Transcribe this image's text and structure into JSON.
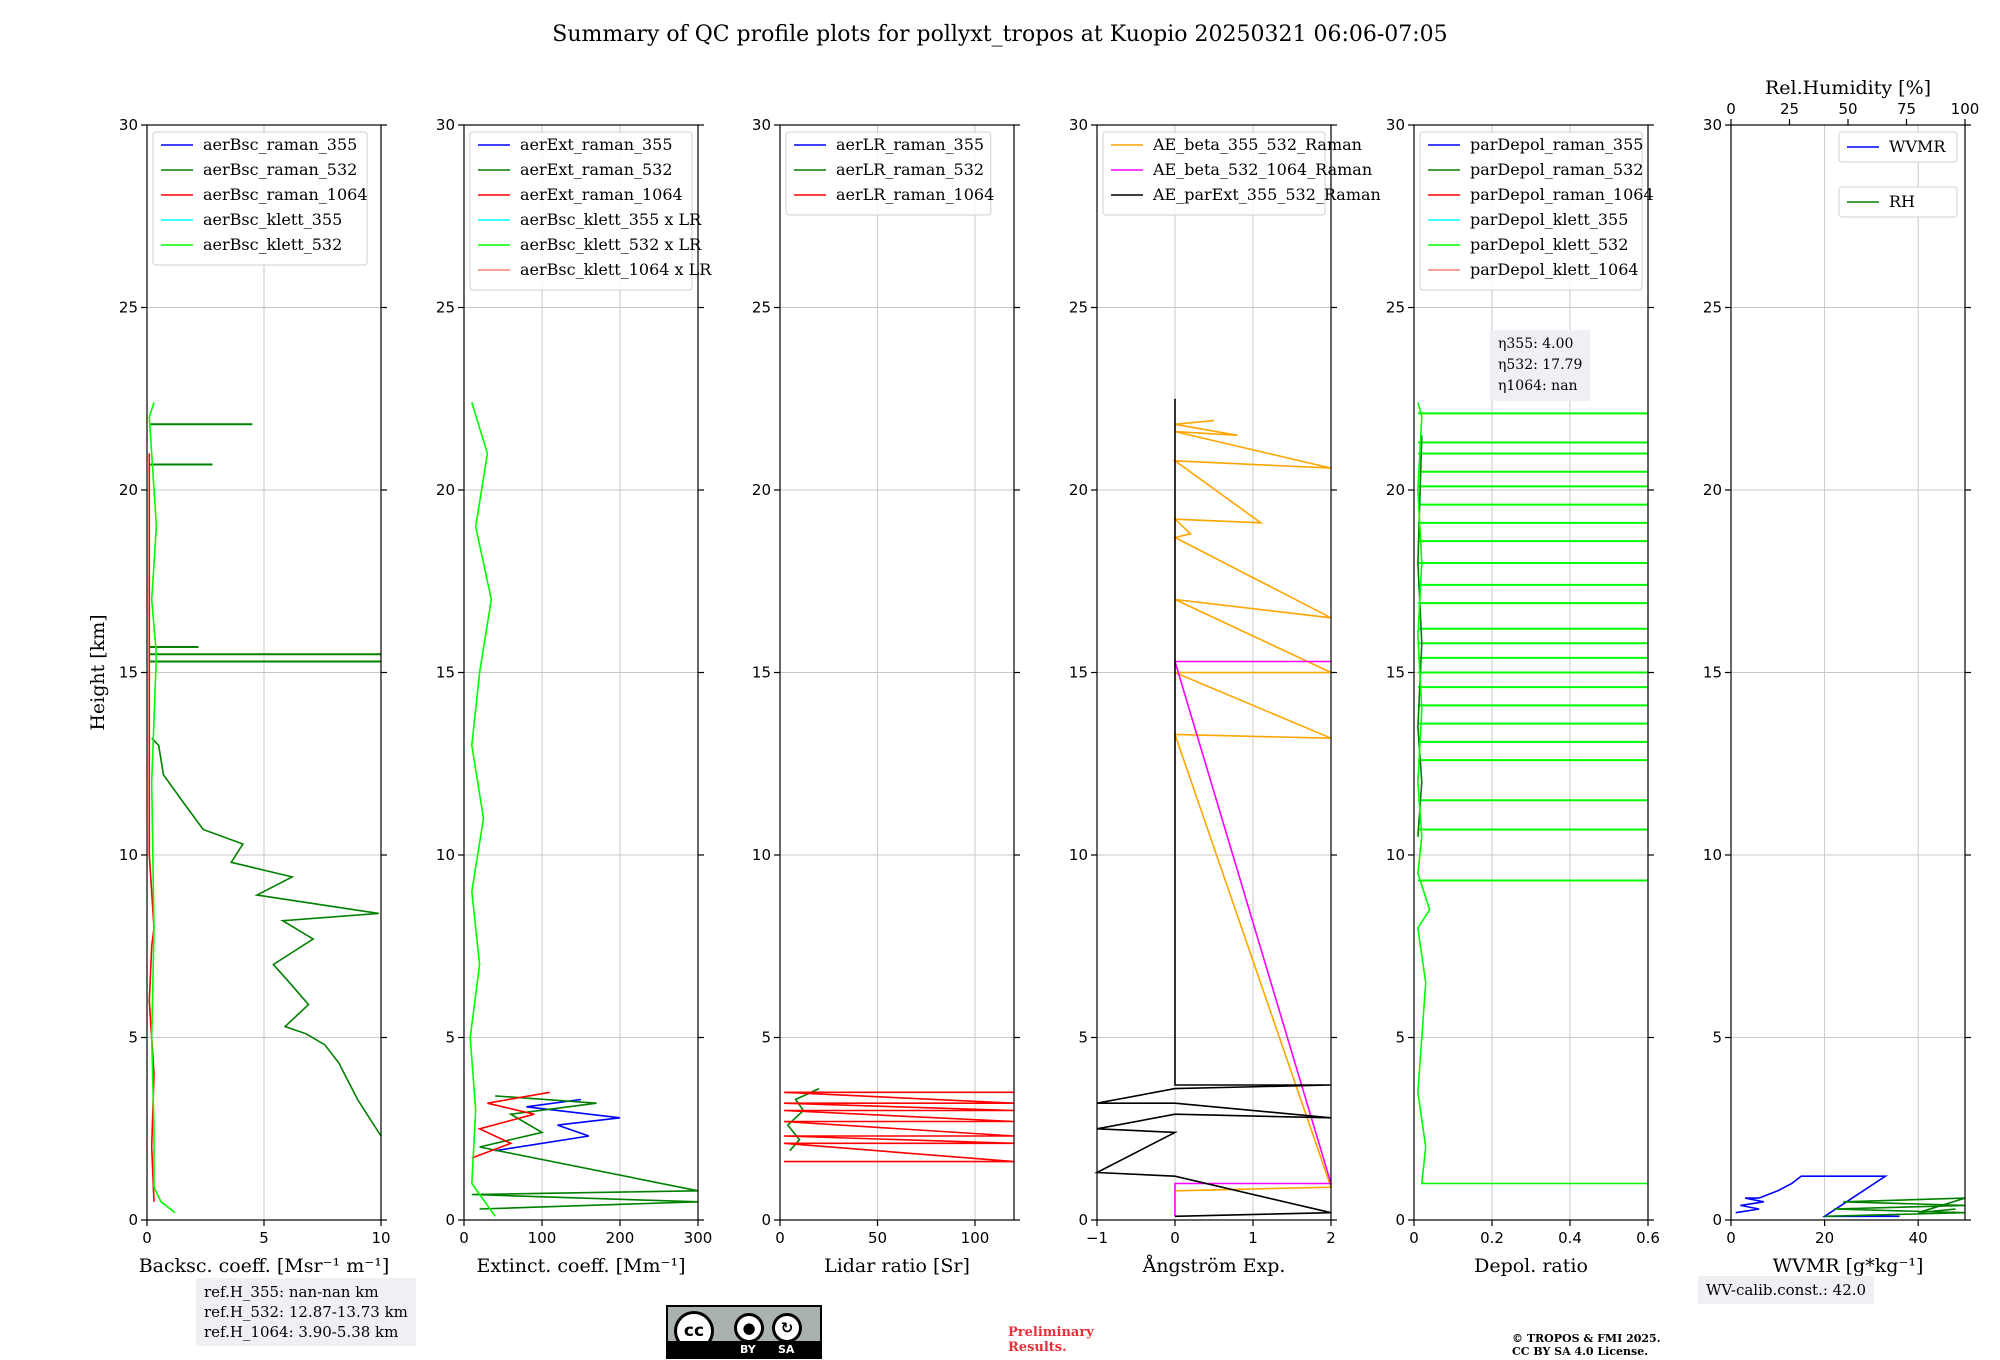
{
  "title": "Summary of QC profile plots for pollyxt_tropos at Kuopio 20250321 06:06-07:05",
  "ref_info": [
    "ref.H_355: nan-nan km",
    "ref.H_532: 12.87-13.73 km",
    "ref.H_1064: 3.90-5.38 km"
  ],
  "eta_info": [
    "η355: 4.00",
    "η532: 17.79",
    "η1064: nan"
  ],
  "wv_calib": "WV-calib.const.: 42.0",
  "preliminary": [
    "Preliminary",
    "Results."
  ],
  "copyright": [
    "© TROPOS & FMI 2025.",
    "CC BY SA 4.0 License."
  ],
  "cc_badge": {
    "main": "cc",
    "by": "BY",
    "sa": "SA"
  },
  "colors": {
    "blue": "#0000ff",
    "green": "#008000",
    "red": "#ff0000",
    "cyan": "#00ffff",
    "lime": "#00ff00",
    "salmon": "#fa8072",
    "orange": "#ffa500",
    "magenta": "#ff00ff",
    "black": "#000000"
  },
  "chart_data": [
    {
      "type": "line",
      "ylabel": "Height [km]",
      "xlabel": "Backsc. coeff. [Msr⁻¹ m⁻¹]",
      "xlim": [
        0,
        10
      ],
      "ylim": [
        0,
        30
      ],
      "xticks": [
        0,
        5,
        10
      ],
      "yticks": [
        0,
        5,
        10,
        15,
        20,
        25,
        30
      ],
      "grid": true,
      "legend": "top-left",
      "series": [
        {
          "name": "aerBsc_raman_355",
          "color": "#0000ff",
          "points": []
        },
        {
          "name": "aerBsc_raman_532",
          "color": "#008000",
          "points": [
            [
              10,
              2.3
            ],
            [
              9.5,
              2.8
            ],
            [
              9,
              3.3
            ],
            [
              8.6,
              3.8
            ],
            [
              8.2,
              4.3
            ],
            [
              7.6,
              4.8
            ],
            [
              6.8,
              5.1
            ],
            [
              5.9,
              5.3
            ],
            [
              6.9,
              5.9
            ],
            [
              6.1,
              6.5
            ],
            [
              5.4,
              7.0
            ],
            [
              7.1,
              7.7
            ],
            [
              5.8,
              8.2
            ],
            [
              9.9,
              8.4
            ],
            [
              4.7,
              8.9
            ],
            [
              6.2,
              9.4
            ],
            [
              3.6,
              9.8
            ],
            [
              4.1,
              10.3
            ],
            [
              2.4,
              10.7
            ],
            [
              1.6,
              11.4
            ],
            [
              0.7,
              12.2
            ],
            [
              0.5,
              13.0
            ],
            [
              0.2,
              13.2
            ]
          ]
        },
        {
          "name": "aerBsc_raman_1064",
          "color": "#ff0000",
          "points": [
            [
              0.3,
              0.5
            ],
            [
              0.2,
              2.0
            ],
            [
              0.3,
              4.0
            ],
            [
              0.1,
              6.0
            ],
            [
              0.2,
              7.5
            ],
            [
              0.3,
              8.0
            ],
            [
              0.1,
              10.0
            ],
            [
              0.1,
              15.5
            ],
            [
              0.1,
              21.0
            ]
          ]
        },
        {
          "name": "aerBsc_klett_355",
          "color": "#00ffff",
          "points": []
        },
        {
          "name": "aerBsc_klett_532",
          "color": "#00ff00",
          "points": [
            [
              1.2,
              0.2
            ],
            [
              0.6,
              0.5
            ],
            [
              0.3,
              0.9
            ],
            [
              0.3,
              2.5
            ],
            [
              0.2,
              5.0
            ],
            [
              0.3,
              8.0
            ],
            [
              0.2,
              12.0
            ],
            [
              0.4,
              15.5
            ],
            [
              0.2,
              17.0
            ],
            [
              0.4,
              19.0
            ],
            [
              0.1,
              22.0
            ],
            [
              0.3,
              22.4
            ]
          ]
        }
      ],
      "extras": [
        {
          "color": "#008000",
          "points": [
            [
              0.1,
              15.3
            ],
            [
              10,
              15.3
            ],
            [
              0.1,
              15.5
            ],
            [
              10,
              15.5
            ],
            [
              0.1,
              21.8
            ],
            [
              4.5,
              21.8
            ],
            [
              0.1,
              20.7
            ],
            [
              2.8,
              20.7
            ],
            [
              0.1,
              15.7
            ],
            [
              2.2,
              15.7
            ]
          ]
        }
      ]
    },
    {
      "type": "line",
      "xlabel": "Extinct. coeff. [Mm⁻¹]",
      "xlim": [
        0,
        300
      ],
      "ylim": [
        0,
        30
      ],
      "xticks": [
        0,
        100,
        200,
        300
      ],
      "yticks": [
        0,
        5,
        10,
        15,
        20,
        25,
        30
      ],
      "grid": true,
      "legend": "top-left",
      "series": [
        {
          "name": "aerExt_raman_355",
          "color": "#0000ff",
          "points": [
            [
              40,
              1.9
            ],
            [
              160,
              2.3
            ],
            [
              120,
              2.6
            ],
            [
              200,
              2.8
            ],
            [
              80,
              3.1
            ],
            [
              150,
              3.3
            ]
          ]
        },
        {
          "name": "aerExt_raman_532",
          "color": "#008000",
          "points": [
            [
              20,
              0.3
            ],
            [
              300,
              0.5
            ],
            [
              10,
              0.7
            ],
            [
              300,
              0.8
            ],
            [
              20,
              2.0
            ],
            [
              100,
              2.4
            ],
            [
              60,
              2.9
            ],
            [
              170,
              3.2
            ],
            [
              40,
              3.4
            ]
          ]
        },
        {
          "name": "aerExt_raman_1064",
          "color": "#ff0000",
          "points": [
            [
              10,
              1.7
            ],
            [
              60,
              2.1
            ],
            [
              20,
              2.5
            ],
            [
              90,
              2.9
            ],
            [
              30,
              3.2
            ],
            [
              110,
              3.5
            ]
          ]
        },
        {
          "name": "aerBsc_klett_355 x LR",
          "color": "#00ffff",
          "points": []
        },
        {
          "name": "aerBsc_klett_532 x LR",
          "color": "#00ff00",
          "points": [
            [
              40,
              0.1
            ],
            [
              10,
              1.0
            ],
            [
              15,
              3.0
            ],
            [
              8,
              5.0
            ],
            [
              20,
              7.0
            ],
            [
              10,
              9.0
            ],
            [
              25,
              11.0
            ],
            [
              10,
              13.0
            ],
            [
              20,
              15.0
            ],
            [
              35,
              17.0
            ],
            [
              15,
              19.0
            ],
            [
              30,
              21.0
            ],
            [
              10,
              22.4
            ]
          ]
        },
        {
          "name": "aerBsc_klett_1064 x LR",
          "color": "#fa8072",
          "points": []
        }
      ]
    },
    {
      "type": "line",
      "xlabel": "Lidar ratio [Sr]",
      "xlim": [
        0,
        120
      ],
      "ylim": [
        0,
        30
      ],
      "xticks": [
        0,
        50,
        100
      ],
      "yticks": [
        0,
        5,
        10,
        15,
        20,
        25,
        30
      ],
      "grid": true,
      "legend": "top-left",
      "series": [
        {
          "name": "aerLR_raman_355",
          "color": "#0000ff",
          "points": []
        },
        {
          "name": "aerLR_raman_532",
          "color": "#008000",
          "points": [
            [
              5,
              1.9
            ],
            [
              10,
              2.2
            ],
            [
              4,
              2.6
            ],
            [
              12,
              3.0
            ],
            [
              8,
              3.3
            ],
            [
              20,
              3.6
            ]
          ]
        },
        {
          "name": "aerLR_raman_1064",
          "color": "#ff0000",
          "points": [
            [
              2,
              1.6
            ],
            [
              120,
              1.6
            ],
            [
              2,
              2.1
            ],
            [
              120,
              2.1
            ],
            [
              2,
              2.3
            ],
            [
              120,
              2.3
            ],
            [
              2,
              2.7
            ],
            [
              120,
              2.7
            ],
            [
              2,
              3.0
            ],
            [
              120,
              3.0
            ],
            [
              2,
              3.2
            ],
            [
              120,
              3.2
            ],
            [
              2,
              3.5
            ],
            [
              120,
              3.5
            ]
          ]
        }
      ]
    },
    {
      "type": "line",
      "xlabel": "Ångström Exp.",
      "xlim": [
        -1,
        2
      ],
      "ylim": [
        0,
        30
      ],
      "xticks": [
        -1,
        0,
        1,
        2
      ],
      "yticks": [
        0,
        5,
        10,
        15,
        20,
        25,
        30
      ],
      "grid": true,
      "legend": "top-left",
      "series": [
        {
          "name": "AE_beta_355_532_Raman",
          "color": "#ffa500",
          "points": [
            [
              0,
              0.8
            ],
            [
              2,
              0.9
            ],
            [
              0,
              13.3
            ],
            [
              2,
              13.2
            ],
            [
              0,
              15.0
            ],
            [
              2,
              15.0
            ],
            [
              0,
              17.0
            ],
            [
              2,
              16.5
            ],
            [
              0,
              18.7
            ],
            [
              0.2,
              18.8
            ],
            [
              0,
              19.2
            ],
            [
              1.1,
              19.1
            ],
            [
              0,
              20.8
            ],
            [
              2,
              20.6
            ],
            [
              0,
              21.6
            ],
            [
              0.8,
              21.5
            ],
            [
              0,
              21.8
            ],
            [
              0.5,
              21.9
            ]
          ]
        },
        {
          "name": "AE_beta_532_1064_Raman",
          "color": "#ff00ff",
          "points": [
            [
              0,
              0.1
            ],
            [
              0,
              1.0
            ],
            [
              2,
              1.0
            ],
            [
              0,
              15.3
            ],
            [
              2,
              15.3
            ]
          ]
        },
        {
          "name": "AE_parExt_355_532_Raman",
          "color": "#000000",
          "points": [
            [
              0,
              0.1
            ],
            [
              2,
              0.2
            ],
            [
              0,
              1.2
            ],
            [
              -1,
              1.3
            ],
            [
              0,
              2.4
            ],
            [
              -1,
              2.5
            ],
            [
              0,
              2.9
            ],
            [
              2,
              2.8
            ],
            [
              0,
              3.2
            ],
            [
              -1,
              3.2
            ],
            [
              0,
              3.6
            ],
            [
              2,
              3.7
            ],
            [
              0,
              3.7
            ],
            [
              0,
              22.5
            ]
          ]
        }
      ]
    },
    {
      "type": "line",
      "xlabel": "Depol. ratio",
      "xlim": [
        0,
        0.6
      ],
      "ylim": [
        0,
        30
      ],
      "xticks": [
        0,
        0.2,
        0.4,
        0.6
      ],
      "yticks": [
        0,
        5,
        10,
        15,
        20,
        25,
        30
      ],
      "grid": true,
      "legend": "top-left",
      "series": [
        {
          "name": "parDepol_raman_355",
          "color": "#0000ff",
          "points": []
        },
        {
          "name": "parDepol_raman_532",
          "color": "#008000",
          "points": [
            [
              0.01,
              10.5
            ],
            [
              0.02,
              12.0
            ],
            [
              0.01,
              13.5
            ],
            [
              0.02,
              15.8
            ],
            [
              0.01,
              18.0
            ],
            [
              0.02,
              21.5
            ]
          ]
        },
        {
          "name": "parDepol_raman_1064",
          "color": "#ff0000",
          "points": []
        },
        {
          "name": "parDepol_klett_355",
          "color": "#00ffff",
          "points": []
        },
        {
          "name": "parDepol_klett_532",
          "color": "#00ff00",
          "points": [
            [
              0.6,
              1.0
            ],
            [
              0.02,
              1.0
            ],
            [
              0.03,
              2.0
            ],
            [
              0.01,
              3.5
            ],
            [
              0.02,
              5.0
            ],
            [
              0.03,
              6.5
            ],
            [
              0.01,
              8.0
            ],
            [
              0.04,
              8.5
            ],
            [
              0.01,
              9.5
            ],
            [
              0.02,
              10.5
            ],
            [
              0.01,
              12.0
            ],
            [
              0.02,
              14.0
            ],
            [
              0.01,
              16.0
            ],
            [
              0.02,
              18.0
            ],
            [
              0.01,
              20.0
            ],
            [
              0.02,
              22.0
            ],
            [
              0.01,
              22.4
            ]
          ]
        },
        {
          "name": "parDepol_klett_1064",
          "color": "#fa8072",
          "points": []
        }
      ],
      "spikes": {
        "color": "#00ff00",
        "xmax": 0.6,
        "heights": [
          9.3,
          10.7,
          11.5,
          12.6,
          13.1,
          13.6,
          14.1,
          14.6,
          15.0,
          15.4,
          15.8,
          16.2,
          16.9,
          17.4,
          18.0,
          18.6,
          19.1,
          19.6,
          20.1,
          20.5,
          21.0,
          21.3,
          22.1
        ]
      }
    },
    {
      "type": "line",
      "xlabel": "WVMR [g*kg⁻¹]",
      "xlim": [
        0,
        50
      ],
      "ylim": [
        0,
        30
      ],
      "xticks": [
        0,
        20,
        40
      ],
      "yticks": [
        0,
        5,
        10,
        15,
        20,
        25,
        30
      ],
      "grid": true,
      "legend": "top-right",
      "x2label": "Rel.Humidity [%]",
      "x2lim": [
        0,
        100
      ],
      "x2ticks": [
        0,
        25,
        50,
        75,
        100
      ],
      "series": [
        {
          "name": "WVMR",
          "color": "#0000ff",
          "points": [
            [
              1,
              0.2
            ],
            [
              6,
              0.3
            ],
            [
              2,
              0.4
            ],
            [
              7,
              0.5
            ],
            [
              3,
              0.6
            ],
            [
              6,
              0.6
            ],
            [
              10,
              0.8
            ],
            [
              13,
              1.0
            ],
            [
              15,
              1.2
            ],
            [
              19,
              1.2
            ],
            [
              20,
              1.2
            ],
            [
              33,
              1.2
            ],
            [
              20,
              0.1
            ],
            [
              36,
              0.1
            ]
          ]
        },
        {
          "name": "RH",
          "color": "#008000",
          "points": [
            [
              20,
              0.1
            ],
            [
              50,
              0.2
            ],
            [
              22,
              0.3
            ],
            [
              50,
              0.4
            ],
            [
              24,
              0.5
            ],
            [
              50,
              0.6
            ],
            [
              40,
              0.2
            ],
            [
              48,
              0.3
            ]
          ]
        }
      ]
    }
  ]
}
